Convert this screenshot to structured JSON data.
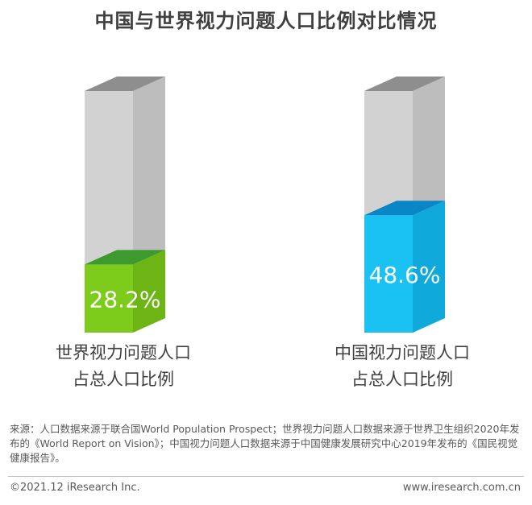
{
  "title": "中国与世界视力问题人口比例对比情况",
  "chart_data": {
    "type": "bar",
    "style": "3d-filled-cylinder-block",
    "categories": [
      "世界视力问题人口占总人口比例",
      "中国视力问题人口占总人口比例"
    ],
    "category_lines": [
      [
        "世界视力问题人口",
        "占总人口比例"
      ],
      [
        "中国视力问题人口",
        "占总人口比例"
      ]
    ],
    "values": [
      28.2,
      48.6
    ],
    "value_labels": [
      "28.2%",
      "48.6%"
    ],
    "unit": "%",
    "colors": {
      "world_front": "#7dcb1a",
      "world_side": "#6cb515",
      "world_top": "#3e9a2f",
      "china_front": "#19c2f2",
      "china_side": "#10a9dc",
      "china_top": "#0a86c7",
      "empty_front": "#d2d2d2",
      "empty_side": "#bdbdbd",
      "empty_top": "#8e8e8e"
    }
  },
  "source": "来源：人口数据来源于联合国World Population Prospect；世界视力问题人口数据来源于世界卫生组织2020年发布的《World Report on Vision》；中国视力问题人口数据来源于中国健康发展研究中心2019年发布的《国民视觉健康报告》。",
  "footer": {
    "copyright": "©2021.12 iResearch Inc.",
    "website": "www.iresearch.com.cn"
  }
}
